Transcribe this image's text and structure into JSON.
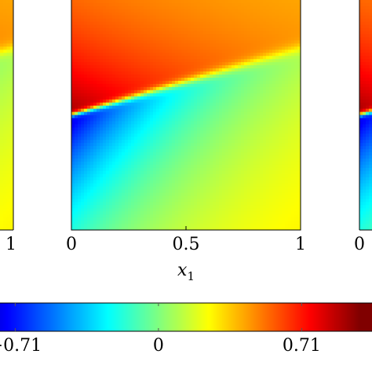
{
  "chart_data": {
    "type": "heatmap",
    "colormap": "jet",
    "color_range": [
      -1,
      1
    ],
    "main_panel": {
      "x_ticks": [
        {
          "value": 0,
          "label": "0"
        },
        {
          "value": 0.5,
          "label": "0.5"
        },
        {
          "value": 1,
          "label": "1"
        }
      ],
      "xlabel": "x",
      "xlabel_subscript": "1",
      "xlim": [
        0,
        1
      ],
      "ylim": [
        0,
        1
      ],
      "field": {
        "interface_y_at_x0": 0.5,
        "interface_y_at_x1": 0.79,
        "peak_value_above": 0.95,
        "trough_value_below": -0.85,
        "far_field_value": 0.35
      }
    },
    "left_partial_panel": {
      "x_tick_label": "1"
    },
    "right_partial_panel": {
      "x_tick_label": "0"
    },
    "colorbar": {
      "ticks": [
        {
          "value": -0.71,
          "label": "-0.71"
        },
        {
          "value": 0,
          "label": "0"
        },
        {
          "value": 0.71,
          "label": "0.71"
        }
      ],
      "range": [
        -1,
        1
      ]
    }
  }
}
